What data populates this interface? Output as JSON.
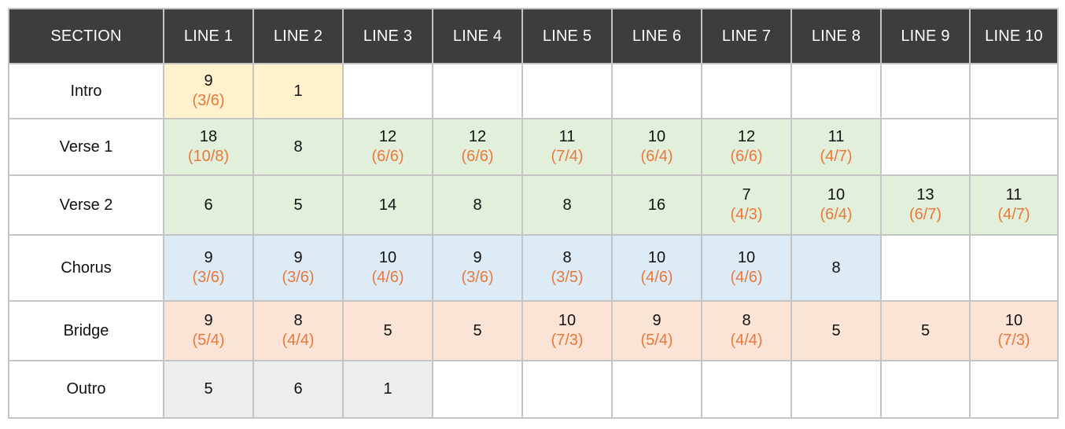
{
  "header": {
    "section": "SECTION",
    "lines": [
      "LINE 1",
      "LINE 2",
      "LINE 3",
      "LINE 4",
      "LINE 5",
      "LINE 6",
      "LINE 7",
      "LINE 8",
      "LINE 9",
      "LINE 10"
    ]
  },
  "colors": {
    "intro": "#fff2cc",
    "verse": "#e2efda",
    "chorus": "#ddebf7",
    "bridge": "#fbe4d5",
    "outro": "#ededed",
    "empty": "#ffffff",
    "sub_text": "#e8793b",
    "header_bg": "#3d3d3d"
  },
  "rows": [
    {
      "section": "Intro",
      "cells": [
        {
          "main": "9",
          "sub": "(3/6)"
        },
        {
          "main": "1",
          "sub": ""
        },
        null,
        null,
        null,
        null,
        null,
        null,
        null,
        null
      ]
    },
    {
      "section": "Verse 1",
      "cells": [
        {
          "main": "18",
          "sub": "(10/8)"
        },
        {
          "main": "8",
          "sub": ""
        },
        {
          "main": "12",
          "sub": "(6/6)"
        },
        {
          "main": "12",
          "sub": "(6/6)"
        },
        {
          "main": "11",
          "sub": "(7/4)"
        },
        {
          "main": "10",
          "sub": "(6/4)"
        },
        {
          "main": "12",
          "sub": "(6/6)"
        },
        {
          "main": "11",
          "sub": "(4/7)"
        },
        null,
        null
      ]
    },
    {
      "section": "Verse 2",
      "cells": [
        {
          "main": "6",
          "sub": ""
        },
        {
          "main": "5",
          "sub": ""
        },
        {
          "main": "14",
          "sub": ""
        },
        {
          "main": "8",
          "sub": ""
        },
        {
          "main": "8",
          "sub": ""
        },
        {
          "main": "16",
          "sub": ""
        },
        {
          "main": "7",
          "sub": "(4/3)"
        },
        {
          "main": "10",
          "sub": "(6/4)"
        },
        {
          "main": "13",
          "sub": "(6/7)"
        },
        {
          "main": "11",
          "sub": "(4/7)"
        }
      ]
    },
    {
      "section": "Chorus",
      "cells": [
        {
          "main": "9",
          "sub": "(3/6)"
        },
        {
          "main": "9",
          "sub": "(3/6)"
        },
        {
          "main": "10",
          "sub": "(4/6)"
        },
        {
          "main": "9",
          "sub": "(3/6)"
        },
        {
          "main": "8",
          "sub": "(3/5)"
        },
        {
          "main": "10",
          "sub": "(4/6)"
        },
        {
          "main": "10",
          "sub": "(4/6)"
        },
        {
          "main": "8",
          "sub": ""
        },
        null,
        null
      ]
    },
    {
      "section": "Bridge",
      "cells": [
        {
          "main": "9",
          "sub": "(5/4)"
        },
        {
          "main": "8",
          "sub": "(4/4)"
        },
        {
          "main": "5",
          "sub": ""
        },
        {
          "main": "5",
          "sub": ""
        },
        {
          "main": "10",
          "sub": "(7/3)"
        },
        {
          "main": "9",
          "sub": "(5/4)"
        },
        {
          "main": "8",
          "sub": "(4/4)"
        },
        {
          "main": "5",
          "sub": ""
        },
        {
          "main": "5",
          "sub": ""
        },
        {
          "main": "10",
          "sub": "(7/3)"
        }
      ]
    },
    {
      "section": "Outro",
      "cells": [
        {
          "main": "5",
          "sub": ""
        },
        {
          "main": "6",
          "sub": ""
        },
        {
          "main": "1",
          "sub": ""
        },
        null,
        null,
        null,
        null,
        null,
        null,
        null
      ]
    }
  ]
}
